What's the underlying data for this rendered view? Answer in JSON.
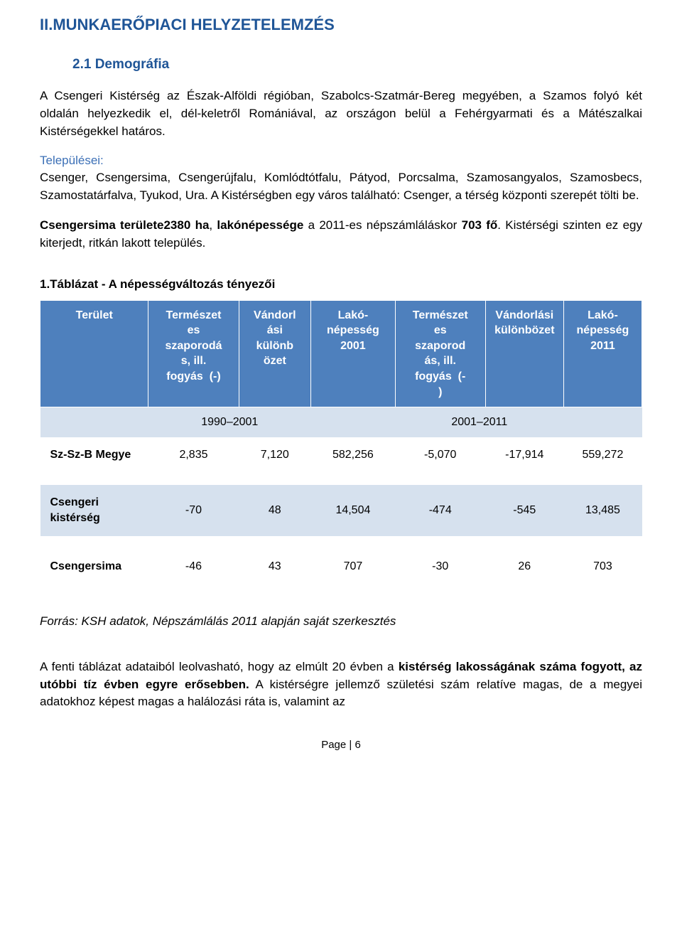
{
  "heading_main": "II.MUNKAERŐPIACI HELYZETELEMZÉS",
  "heading_sub": "2.1 Demográfia",
  "para1": "A Csengeri Kistérség az Észak-Alföldi régióban, Szabolcs-Szatmár-Bereg megyében, a Szamos folyó két oldalán helyezkedik el, dél-keletről Romániával, az országon belül a Fehérgyarmati és a Mátészalkai Kistérségekkel határos.",
  "settlements_label": "Települései:",
  "para2": "Csenger, Csengersima, Csengerújfalu, Komlódtótfalu, Pátyod, Porcsalma, Szamosangyalos, Szamosbecs, Szamostatárfalva, Tyukod, Ura. A Kistérségben egy város található: Csenger, a térség központi szerepét tölti be.",
  "para3_pre": "Csengersima területe",
  "para3_bold1": "2380 ha",
  "para3_mid1": ", ",
  "para3_bold2": "lakónépessége",
  "para3_mid2": " a 2011-es népszámláláskor ",
  "para3_bold3": "703 fő",
  "para3_tail": ". Kistérségi szinten ez egy kiterjedt, ritkán lakott település.",
  "table_caption": "1.Táblázat - A népességváltozás tényezői",
  "table": {
    "columns": [
      "Terület",
      "Természetes szaporodás, ill. fogyás  (-)",
      "Vándorlási különbözet",
      "Lakó-népesség 2001",
      "Természetes szaporodás, ill. fogyás  (-)",
      "Vándorlási különbözet",
      "Lakó-népesség 2011"
    ],
    "subheader": {
      "left": "1990–2001",
      "right": "2001–2011"
    },
    "rows": [
      {
        "label": "Sz-Sz-B Megye",
        "vals": [
          "2,835",
          "7,120",
          "582,256",
          "-5,070",
          "-17,914",
          "559,272"
        ],
        "alt": false
      },
      {
        "label": "Csengeri kistérség",
        "vals": [
          "-70",
          "48",
          "14,504",
          "-474",
          "-545",
          "13,485"
        ],
        "alt": true
      },
      {
        "label": "Csengersima",
        "vals": [
          "-46",
          "43",
          "707",
          "-30",
          "26",
          "703"
        ],
        "alt": false
      }
    ],
    "header_bg": "#4e80bd",
    "header_fg": "#ffffff",
    "alt_bg": "#d6e1ee",
    "col_widths_pct": [
      18,
      15,
      12,
      14,
      15,
      13,
      13
    ]
  },
  "source": "Forrás: KSH adatok, Népszámlálás 2011 alapján saját szerkesztés",
  "para4_pre": "A fenti táblázat adataiból leolvasható, hogy az elmúlt 20 évben a ",
  "para4_bold": "kistérség lakosságának száma fogyott, az utóbbi tíz évben egyre erősebben.",
  "para4_tail": " A kistérségre jellemző születési szám relatíve magas, de a megyei adatokhoz képest magas a halálozási ráta is, valamint az",
  "footer": "Page | 6"
}
